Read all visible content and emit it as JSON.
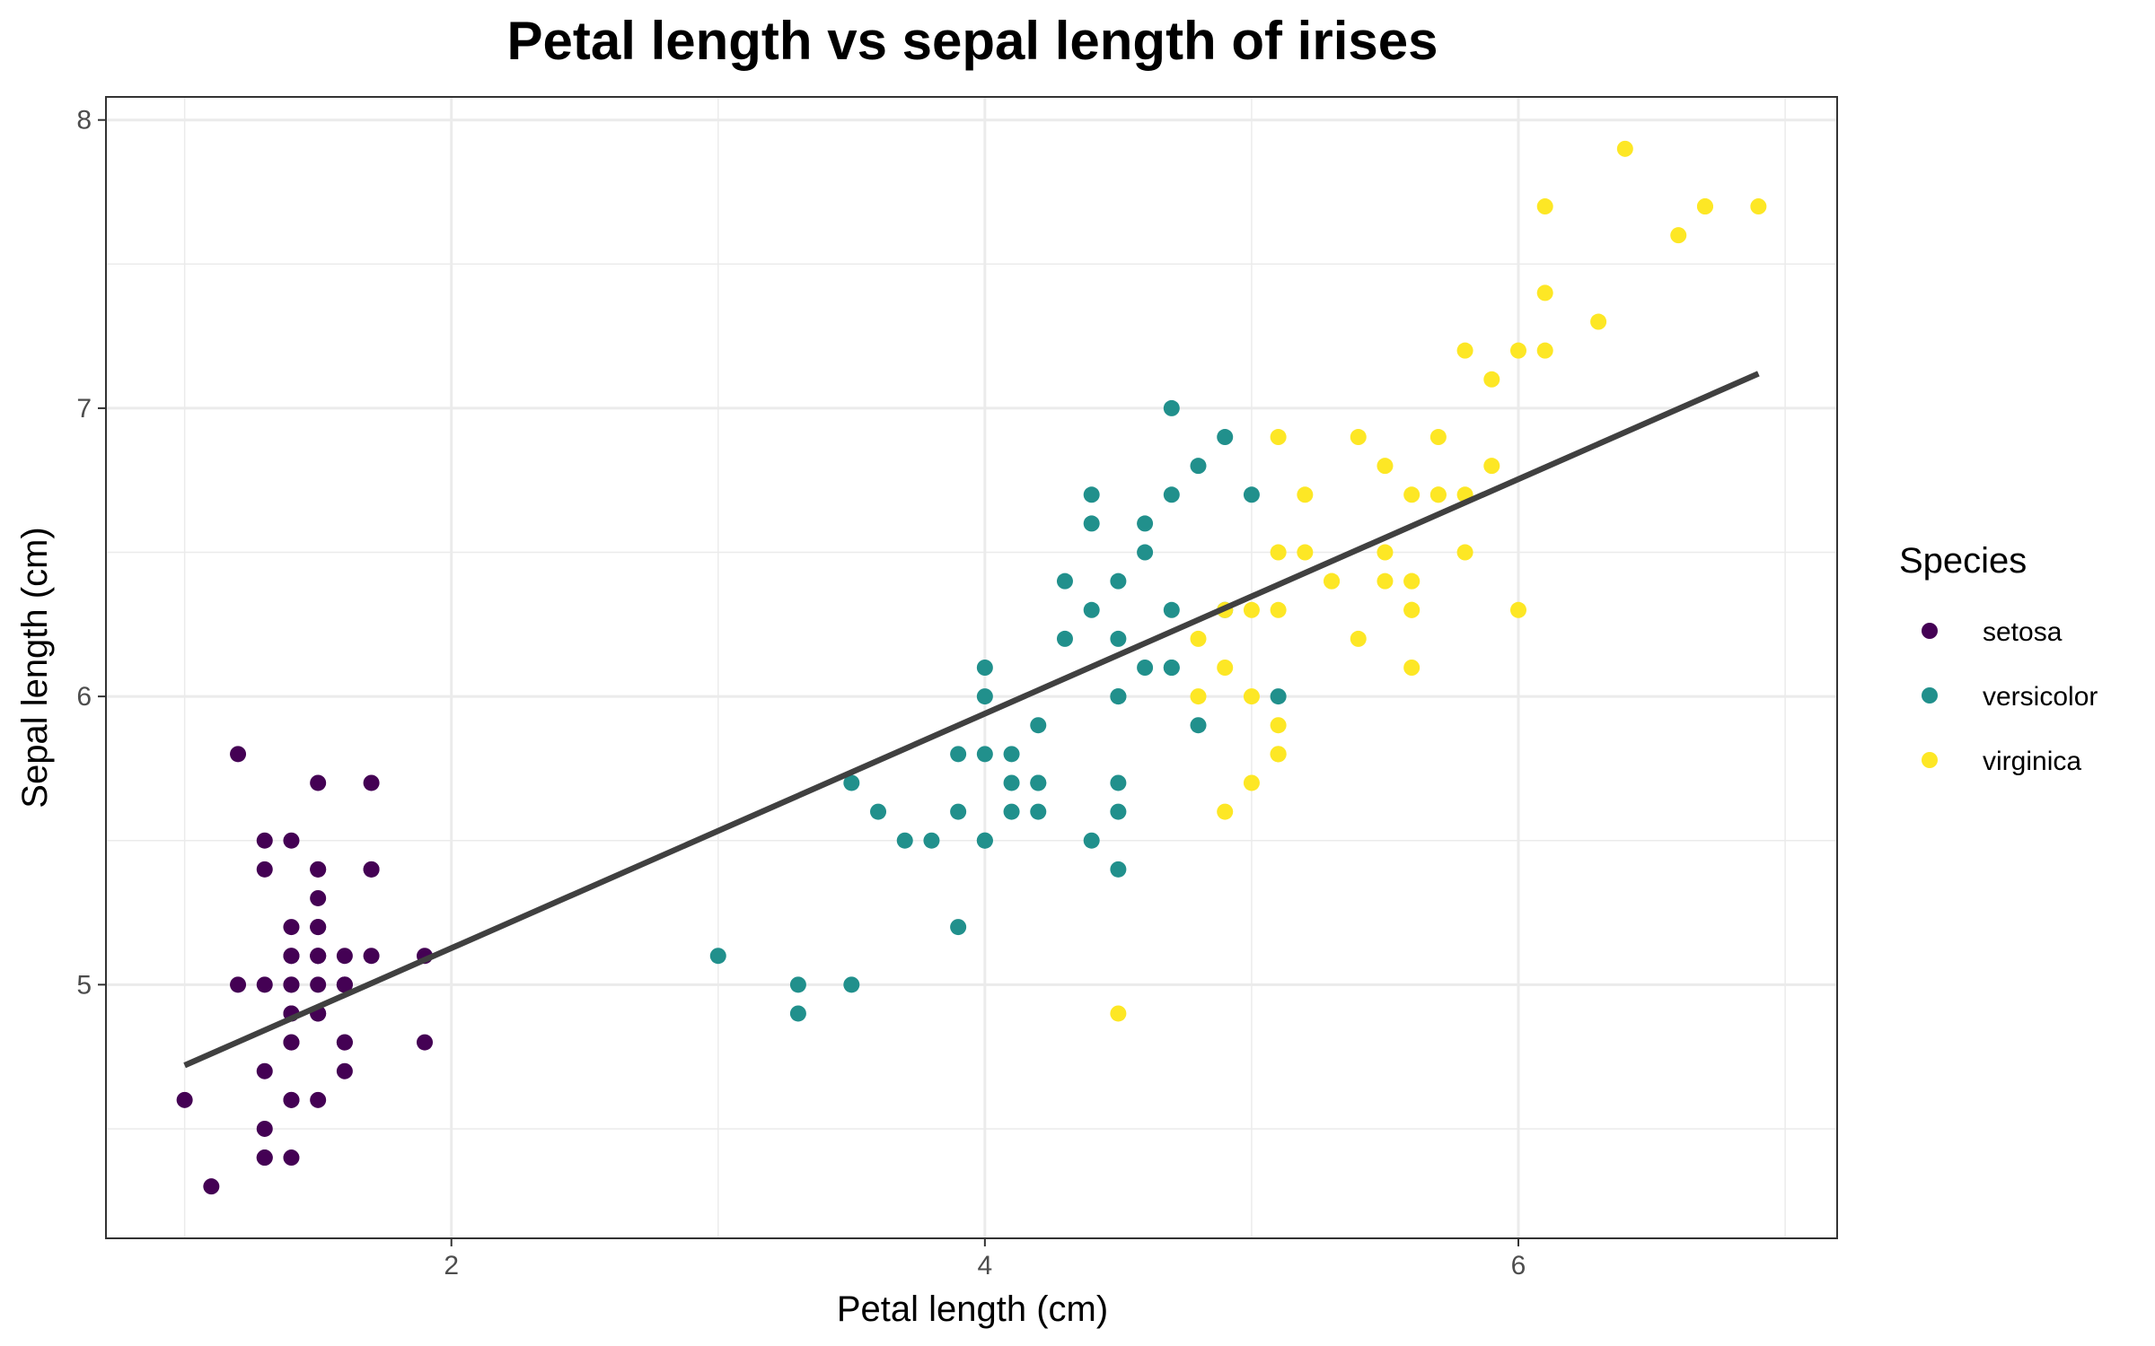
{
  "chart_data": {
    "type": "scatter",
    "title": "Petal length vs sepal length of irises",
    "xlabel": "Petal length (cm)",
    "ylabel": "Sepal length (cm)",
    "xlim": [
      0.705,
      7.195
    ],
    "ylim": [
      4.12,
      8.08
    ],
    "x_ticks": [
      2,
      4,
      6
    ],
    "y_ticks": [
      5,
      6,
      7,
      8
    ],
    "x_minor_ticks": [
      1,
      3,
      5,
      7
    ],
    "y_minor_ticks": [
      4.5,
      5.5,
      6.5,
      7.5
    ],
    "grid": true,
    "legend": {
      "title": "Species",
      "position": "right"
    },
    "trendline": {
      "x": [
        1.0,
        6.9
      ],
      "y": [
        4.72,
        7.12
      ],
      "color": "#404040"
    },
    "series": [
      {
        "name": "setosa",
        "color": "#440154",
        "points": [
          [
            1.4,
            5.1
          ],
          [
            1.4,
            4.9
          ],
          [
            1.3,
            4.7
          ],
          [
            1.5,
            4.6
          ],
          [
            1.4,
            5.0
          ],
          [
            1.7,
            5.4
          ],
          [
            1.4,
            4.6
          ],
          [
            1.5,
            5.0
          ],
          [
            1.4,
            4.4
          ],
          [
            1.5,
            4.9
          ],
          [
            1.5,
            5.4
          ],
          [
            1.6,
            4.8
          ],
          [
            1.4,
            4.8
          ],
          [
            1.1,
            4.3
          ],
          [
            1.2,
            5.8
          ],
          [
            1.5,
            5.7
          ],
          [
            1.3,
            5.4
          ],
          [
            1.4,
            5.1
          ],
          [
            1.7,
            5.7
          ],
          [
            1.5,
            5.1
          ],
          [
            1.7,
            5.4
          ],
          [
            1.5,
            5.1
          ],
          [
            1.0,
            4.6
          ],
          [
            1.7,
            5.1
          ],
          [
            1.9,
            4.8
          ],
          [
            1.6,
            5.0
          ],
          [
            1.6,
            5.0
          ],
          [
            1.5,
            5.2
          ],
          [
            1.4,
            5.2
          ],
          [
            1.6,
            4.7
          ],
          [
            1.6,
            4.8
          ],
          [
            1.5,
            5.4
          ],
          [
            1.5,
            5.2
          ],
          [
            1.4,
            5.5
          ],
          [
            1.5,
            4.9
          ],
          [
            1.2,
            5.0
          ],
          [
            1.3,
            5.5
          ],
          [
            1.4,
            4.9
          ],
          [
            1.3,
            4.4
          ],
          [
            1.5,
            5.1
          ],
          [
            1.3,
            5.0
          ],
          [
            1.3,
            4.5
          ],
          [
            1.3,
            4.4
          ],
          [
            1.6,
            5.0
          ],
          [
            1.9,
            5.1
          ],
          [
            1.4,
            4.8
          ],
          [
            1.6,
            5.1
          ],
          [
            1.4,
            4.6
          ],
          [
            1.5,
            5.3
          ],
          [
            1.4,
            5.0
          ]
        ]
      },
      {
        "name": "versicolor",
        "color": "#21908C",
        "points": [
          [
            4.7,
            7.0
          ],
          [
            4.5,
            6.4
          ],
          [
            4.9,
            6.9
          ],
          [
            4.0,
            5.5
          ],
          [
            4.6,
            6.5
          ],
          [
            4.5,
            5.7
          ],
          [
            4.7,
            6.3
          ],
          [
            3.3,
            4.9
          ],
          [
            4.6,
            6.6
          ],
          [
            3.9,
            5.2
          ],
          [
            3.5,
            5.0
          ],
          [
            4.2,
            5.9
          ],
          [
            4.0,
            6.0
          ],
          [
            4.7,
            6.1
          ],
          [
            3.6,
            5.6
          ],
          [
            4.4,
            6.7
          ],
          [
            4.5,
            5.6
          ],
          [
            4.1,
            5.8
          ],
          [
            4.5,
            6.2
          ],
          [
            3.9,
            5.6
          ],
          [
            4.8,
            5.9
          ],
          [
            4.0,
            6.1
          ],
          [
            4.9,
            6.3
          ],
          [
            4.7,
            6.1
          ],
          [
            4.3,
            6.4
          ],
          [
            4.4,
            6.6
          ],
          [
            4.8,
            6.8
          ],
          [
            5.0,
            6.7
          ],
          [
            4.5,
            6.0
          ],
          [
            3.5,
            5.7
          ],
          [
            3.8,
            5.5
          ],
          [
            3.7,
            5.5
          ],
          [
            3.9,
            5.8
          ],
          [
            5.1,
            6.0
          ],
          [
            4.5,
            5.4
          ],
          [
            4.5,
            6.0
          ],
          [
            4.7,
            6.7
          ],
          [
            4.4,
            6.3
          ],
          [
            4.1,
            5.6
          ],
          [
            4.0,
            5.5
          ],
          [
            4.4,
            5.5
          ],
          [
            4.6,
            6.1
          ],
          [
            4.0,
            5.8
          ],
          [
            3.3,
            5.0
          ],
          [
            4.2,
            5.6
          ],
          [
            4.2,
            5.7
          ],
          [
            4.2,
            5.7
          ],
          [
            4.3,
            6.2
          ],
          [
            3.0,
            5.1
          ],
          [
            4.1,
            5.7
          ]
        ]
      },
      {
        "name": "virginica",
        "color": "#FDE725",
        "points": [
          [
            6.0,
            6.3
          ],
          [
            5.1,
            5.8
          ],
          [
            5.9,
            7.1
          ],
          [
            5.6,
            6.3
          ],
          [
            5.8,
            6.5
          ],
          [
            6.6,
            7.6
          ],
          [
            4.5,
            4.9
          ],
          [
            6.3,
            7.3
          ],
          [
            5.8,
            6.7
          ],
          [
            6.1,
            7.2
          ],
          [
            5.1,
            6.5
          ],
          [
            5.3,
            6.4
          ],
          [
            5.5,
            6.8
          ],
          [
            5.0,
            5.7
          ],
          [
            5.1,
            5.8
          ],
          [
            5.3,
            6.4
          ],
          [
            5.5,
            6.5
          ],
          [
            6.7,
            7.7
          ],
          [
            6.9,
            7.7
          ],
          [
            5.0,
            6.0
          ],
          [
            5.7,
            6.9
          ],
          [
            4.9,
            5.6
          ],
          [
            6.7,
            7.7
          ],
          [
            4.9,
            6.3
          ],
          [
            5.7,
            6.7
          ],
          [
            6.0,
            7.2
          ],
          [
            4.8,
            6.2
          ],
          [
            4.9,
            6.1
          ],
          [
            5.6,
            6.4
          ],
          [
            5.8,
            7.2
          ],
          [
            6.1,
            7.4
          ],
          [
            6.4,
            7.9
          ],
          [
            5.6,
            6.4
          ],
          [
            5.1,
            6.3
          ],
          [
            5.6,
            6.1
          ],
          [
            6.1,
            7.7
          ],
          [
            5.6,
            6.3
          ],
          [
            5.5,
            6.4
          ],
          [
            4.8,
            6.0
          ],
          [
            5.4,
            6.9
          ],
          [
            5.6,
            6.7
          ],
          [
            5.1,
            6.9
          ],
          [
            5.1,
            5.8
          ],
          [
            5.9,
            6.8
          ],
          [
            5.7,
            6.7
          ],
          [
            5.2,
            6.7
          ],
          [
            5.0,
            6.3
          ],
          [
            5.2,
            6.5
          ],
          [
            5.4,
            6.2
          ],
          [
            5.1,
            5.9
          ]
        ]
      }
    ]
  }
}
